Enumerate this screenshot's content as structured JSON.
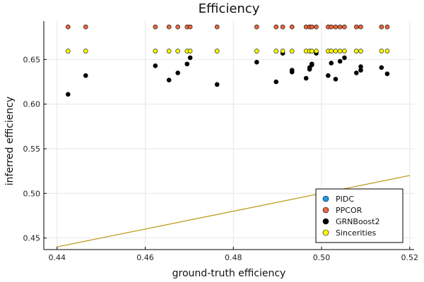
{
  "chart_data": {
    "type": "scatter",
    "title": "Efficiency",
    "xlabel": "ground-truth efficiency",
    "ylabel": "inferred efficiency",
    "xlim": [
      0.437,
      0.521
    ],
    "ylim": [
      0.437,
      0.693
    ],
    "x_ticks": [
      0.44,
      0.46,
      0.48,
      0.5,
      0.52
    ],
    "x_tick_labels": [
      "0.44",
      "0.46",
      "0.48",
      "0.50",
      "0.52"
    ],
    "y_ticks": [
      0.45,
      0.5,
      0.55,
      0.6,
      0.65
    ],
    "y_tick_labels": [
      "0.45",
      "0.50",
      "0.55",
      "0.60",
      "0.65"
    ],
    "grid": true,
    "legend_position": "bottom-right",
    "reference_line": {
      "x": [
        0.44,
        0.52
      ],
      "y": [
        0.44,
        0.52
      ],
      "color": "#b8960c"
    },
    "series": [
      {
        "name": "PIDC",
        "color": "#1f9ce6",
        "x": [],
        "y": []
      },
      {
        "name": "PPCOR",
        "color": "#e8683e",
        "x": [
          0.4425,
          0.4465,
          0.4623,
          0.4654,
          0.4674,
          0.4695,
          0.4702,
          0.4763,
          0.4853,
          0.4897,
          0.4912,
          0.4933,
          0.4965,
          0.4973,
          0.4978,
          0.4988,
          0.5015,
          0.5022,
          0.5032,
          0.5042,
          0.5052,
          0.5079,
          0.5089,
          0.5136,
          0.5149
        ],
        "y": [
          0.6865,
          0.6865,
          0.6865,
          0.6865,
          0.6865,
          0.6865,
          0.6865,
          0.6865,
          0.6865,
          0.6865,
          0.6865,
          0.6865,
          0.6865,
          0.6865,
          0.6865,
          0.6865,
          0.6865,
          0.6865,
          0.6865,
          0.6865,
          0.6865,
          0.6865,
          0.6865,
          0.6865,
          0.6865
        ]
      },
      {
        "name": "GRNBoost2",
        "color": "#000000",
        "x": [
          0.4425,
          0.4465,
          0.4623,
          0.4654,
          0.4674,
          0.4695,
          0.4702,
          0.4763,
          0.4853,
          0.4897,
          0.4912,
          0.4933,
          0.4933,
          0.4965,
          0.4973,
          0.4973,
          0.4978,
          0.4978,
          0.4988,
          0.5015,
          0.5022,
          0.5032,
          0.5042,
          0.5052,
          0.5079,
          0.5089,
          0.5089,
          0.5136,
          0.5149
        ],
        "y": [
          0.611,
          0.632,
          0.643,
          0.627,
          0.635,
          0.645,
          0.652,
          0.622,
          0.647,
          0.625,
          0.657,
          0.638,
          0.636,
          0.629,
          0.639,
          0.641,
          0.644,
          0.645,
          0.657,
          0.632,
          0.646,
          0.628,
          0.648,
          0.652,
          0.635,
          0.638,
          0.642,
          0.641,
          0.634
        ]
      },
      {
        "name": "Sincerities",
        "color": "#ffff00",
        "x": [
          0.4425,
          0.4465,
          0.4623,
          0.4654,
          0.4674,
          0.4695,
          0.4702,
          0.4763,
          0.4853,
          0.4897,
          0.4912,
          0.4933,
          0.4965,
          0.4973,
          0.4978,
          0.4988,
          0.5015,
          0.5022,
          0.5032,
          0.5042,
          0.5052,
          0.5079,
          0.5089,
          0.5136,
          0.5149
        ],
        "y": [
          0.6595,
          0.6595,
          0.6595,
          0.6595,
          0.6595,
          0.6595,
          0.6595,
          0.6595,
          0.6595,
          0.6595,
          0.6595,
          0.6595,
          0.6595,
          0.6595,
          0.6595,
          0.6595,
          0.6595,
          0.6595,
          0.6595,
          0.6595,
          0.6595,
          0.6595,
          0.6595,
          0.6595,
          0.6595
        ]
      }
    ]
  }
}
